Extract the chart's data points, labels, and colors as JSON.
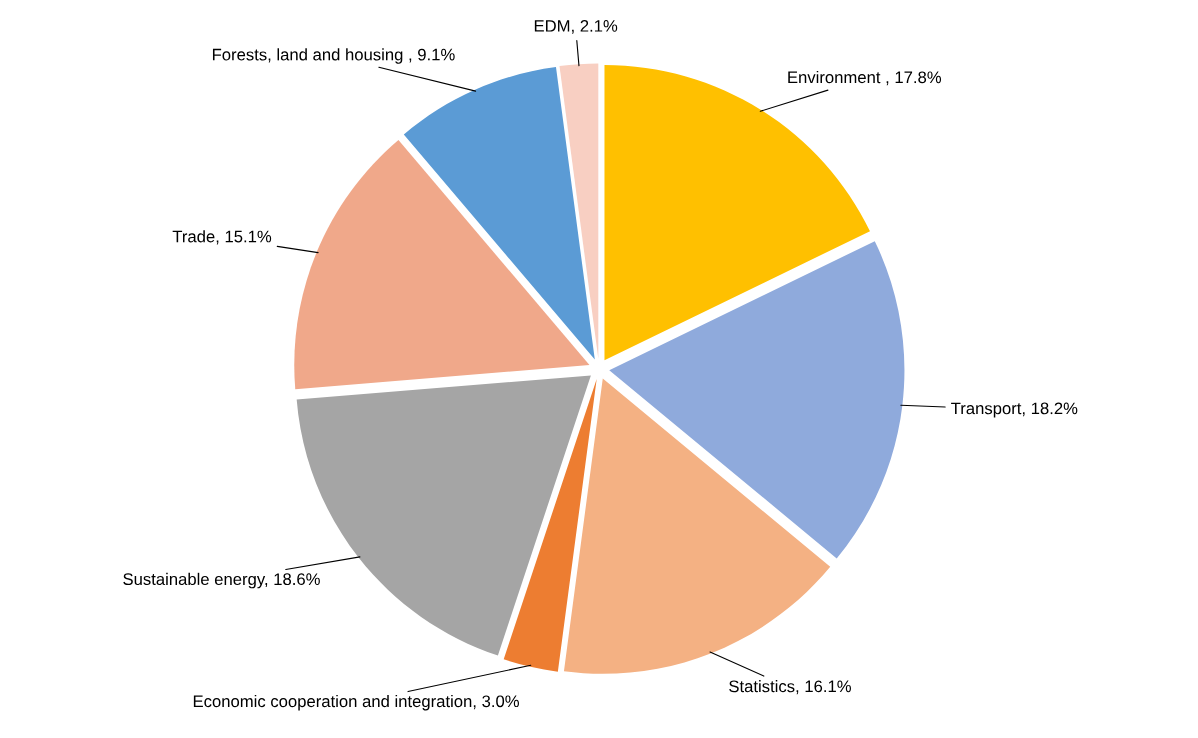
{
  "chart_data": {
    "type": "pie",
    "categories": [
      "Environment ",
      "Transport",
      "Statistics",
      "Economic cooperation and integration",
      "Sustainable energy",
      "Trade",
      "Forests, land and housing ",
      "EDM"
    ],
    "values": [
      17.8,
      18.2,
      16.1,
      3.0,
      18.6,
      15.1,
      9.1,
      2.1
    ],
    "value_labels": [
      "17.8%",
      "18.2%",
      "16.1%",
      "3.0%",
      "18.6%",
      "15.1%",
      "9.1%",
      "2.1%"
    ],
    "colors": [
      "#ffc000",
      "#8faadc",
      "#f4b183",
      "#ed7d31",
      "#a5a5a5",
      "#f0a88a",
      "#5b9bd5",
      "#f8cfc2"
    ],
    "legend": false
  }
}
